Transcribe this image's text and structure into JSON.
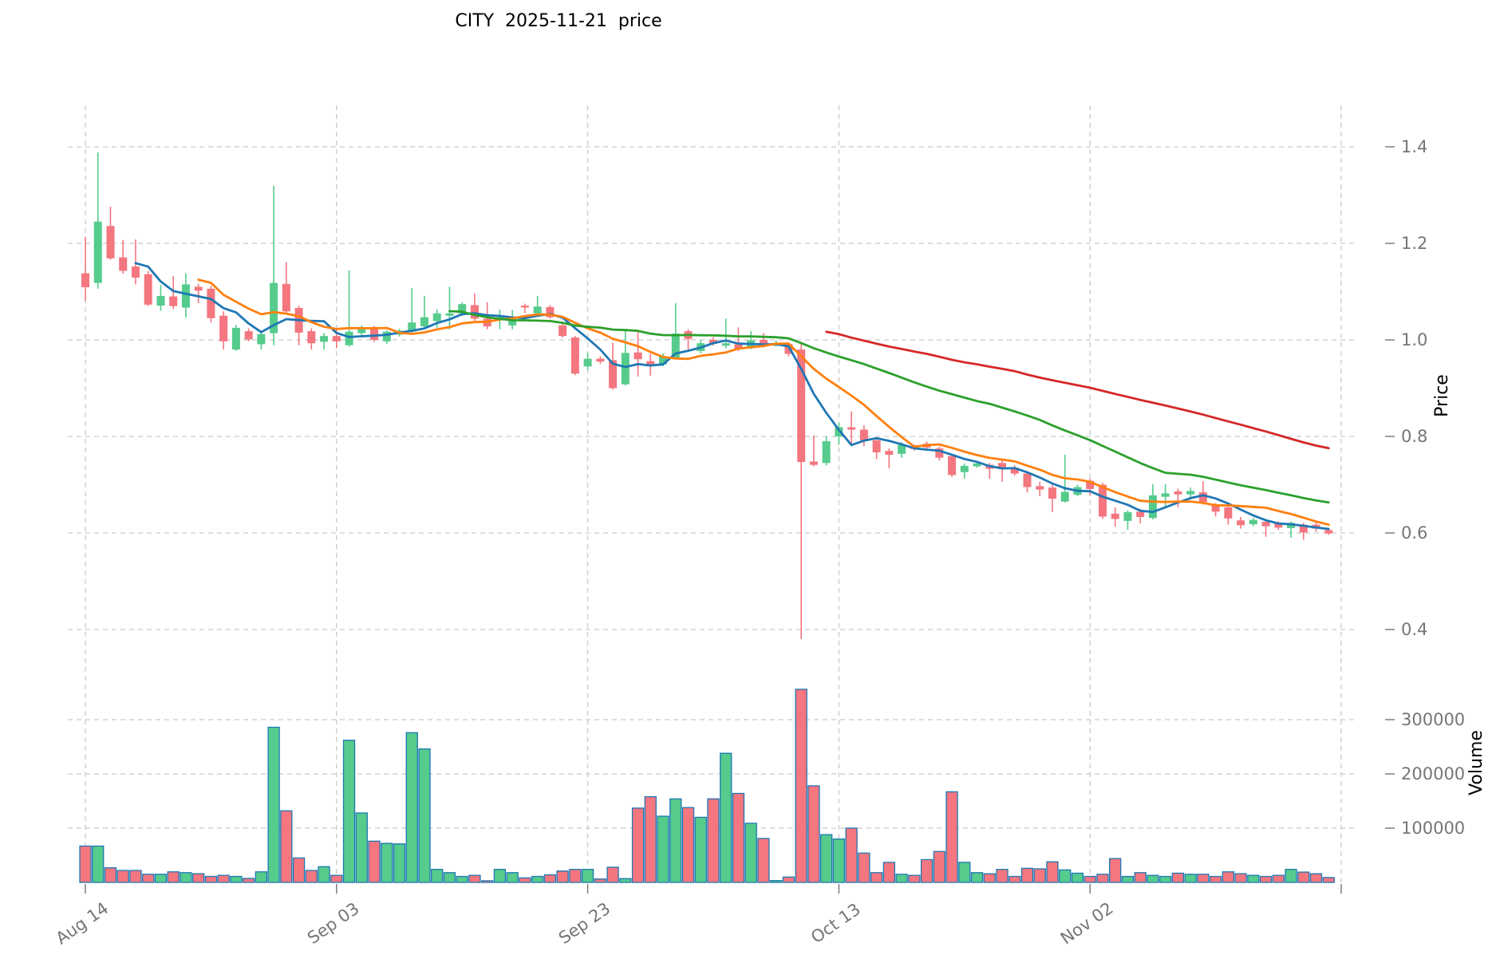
{
  "chart_data": {
    "type": "candlestick",
    "title": "CITY  2025-11-21  price",
    "ylabel": "Price",
    "ylabel_volume": "Volume",
    "legend": "none",
    "grid": "dashed",
    "x_ticks": {
      "labels": [
        "Aug 14",
        "Sep 03",
        "Sep 23",
        "Oct 13",
        "Nov 02"
      ],
      "candle_indices": [
        0,
        20,
        40,
        60,
        80
      ],
      "extra_unlabeled_gridline_index": 100,
      "rotation_deg": -35
    },
    "price_axis": {
      "ticks": [
        1.4,
        1.2,
        1.0,
        0.8,
        0.6,
        0.4
      ],
      "side": "right"
    },
    "volume_axis": {
      "ticks": [
        100000,
        200000,
        300000
      ],
      "side": "right"
    },
    "num_candles": 100,
    "open": [
      1.138,
      1.118,
      1.236,
      1.171,
      1.152,
      1.136,
      1.071,
      1.09,
      1.067,
      1.11,
      1.106,
      1.05,
      0.98,
      1.018,
      0.991,
      1.014,
      1.116,
      1.066,
      1.018,
      0.996,
      1.008,
      0.989,
      1.014,
      1.025,
      0.997,
      1.011,
      1.017,
      1.028,
      1.039,
      1.05,
      1.055,
      1.072,
      1.044,
      1.041,
      1.03,
      1.071,
      1.055,
      1.068,
      1.03,
      1.005,
      0.945,
      0.961,
      0.958,
      0.908,
      0.974,
      0.956,
      0.949,
      0.963,
      1.018,
      0.977,
      1.0,
      0.988,
      0.991,
      0.985,
      1.0,
      0.988,
      0.991,
      0.98,
      0.748,
      0.745,
      0.8,
      0.819,
      0.814,
      0.792,
      0.77,
      0.764,
      0.779,
      0.785,
      0.775,
      0.759,
      0.726,
      0.738,
      0.741,
      0.745,
      0.735,
      0.723,
      0.697,
      0.694,
      0.665,
      0.679,
      0.708,
      0.7,
      0.64,
      0.625,
      0.644,
      0.631,
      0.675,
      0.686,
      0.68,
      0.684,
      0.657,
      0.653,
      0.626,
      0.618,
      0.623,
      0.62,
      0.61,
      0.617,
      0.617,
      0.606
    ],
    "high": [
      1.213,
      1.388,
      1.276,
      1.207,
      1.208,
      1.143,
      1.114,
      1.132,
      1.138,
      1.116,
      1.112,
      1.059,
      1.031,
      1.024,
      1.017,
      1.319,
      1.161,
      1.071,
      1.024,
      1.014,
      1.025,
      1.144,
      1.03,
      1.029,
      1.02,
      1.023,
      1.107,
      1.091,
      1.063,
      1.11,
      1.078,
      1.096,
      1.078,
      1.063,
      1.062,
      1.075,
      1.091,
      1.072,
      1.033,
      1.008,
      0.974,
      0.966,
      0.994,
      1.022,
      1.018,
      0.971,
      0.972,
      1.076,
      1.022,
      1.0,
      1.006,
      1.044,
      1.026,
      1.018,
      1.014,
      0.999,
      0.994,
      0.994,
      0.802,
      0.8,
      0.828,
      0.852,
      0.823,
      0.797,
      0.775,
      0.788,
      0.783,
      0.789,
      0.779,
      0.762,
      0.744,
      0.748,
      0.745,
      0.75,
      0.74,
      0.727,
      0.706,
      0.7,
      0.762,
      0.7,
      0.712,
      0.704,
      0.653,
      0.647,
      0.65,
      0.701,
      0.701,
      0.692,
      0.694,
      0.707,
      0.662,
      0.661,
      0.633,
      0.631,
      0.628,
      0.624,
      0.624,
      0.621,
      0.621,
      0.61
    ],
    "low": [
      1.081,
      1.106,
      1.166,
      1.137,
      1.115,
      1.07,
      1.06,
      1.064,
      1.046,
      1.076,
      1.036,
      0.98,
      0.977,
      0.997,
      0.98,
      0.989,
      1.053,
      0.989,
      0.98,
      0.98,
      0.983,
      0.986,
      1.008,
      0.996,
      0.992,
      1.007,
      1.014,
      1.025,
      1.025,
      1.022,
      1.049,
      1.039,
      1.022,
      1.022,
      1.022,
      1.056,
      1.052,
      1.044,
      1.005,
      0.927,
      0.938,
      0.95,
      0.897,
      0.905,
      0.924,
      0.926,
      0.945,
      0.96,
      0.98,
      0.972,
      0.988,
      0.983,
      0.977,
      0.981,
      0.984,
      0.986,
      0.966,
      0.38,
      0.738,
      0.74,
      0.783,
      0.783,
      0.78,
      0.753,
      0.734,
      0.756,
      0.77,
      0.774,
      0.75,
      0.716,
      0.713,
      0.735,
      0.712,
      0.706,
      0.719,
      0.684,
      0.676,
      0.643,
      0.663,
      0.676,
      0.678,
      0.629,
      0.613,
      0.607,
      0.62,
      0.628,
      0.651,
      0.653,
      0.672,
      0.659,
      0.634,
      0.617,
      0.609,
      0.614,
      0.592,
      0.606,
      0.59,
      0.586,
      0.603,
      0.596
    ],
    "close": [
      1.109,
      1.245,
      1.169,
      1.143,
      1.129,
      1.073,
      1.091,
      1.07,
      1.115,
      1.102,
      1.045,
      0.997,
      1.025,
      1.001,
      1.012,
      1.118,
      1.059,
      1.015,
      0.993,
      1.008,
      0.997,
      1.017,
      1.022,
      1.0,
      1.017,
      1.019,
      1.036,
      1.047,
      1.055,
      1.055,
      1.074,
      1.044,
      1.028,
      1.047,
      1.039,
      1.067,
      1.069,
      1.047,
      1.008,
      0.93,
      0.961,
      0.955,
      0.9,
      0.973,
      0.96,
      0.947,
      0.966,
      1.013,
      1.002,
      0.993,
      0.992,
      0.993,
      0.981,
      0.999,
      0.988,
      0.994,
      0.971,
      0.747,
      0.741,
      0.79,
      0.819,
      0.814,
      0.792,
      0.767,
      0.762,
      0.783,
      0.774,
      0.777,
      0.756,
      0.72,
      0.739,
      0.744,
      0.733,
      0.733,
      0.723,
      0.695,
      0.69,
      0.671,
      0.685,
      0.695,
      0.691,
      0.634,
      0.629,
      0.643,
      0.633,
      0.678,
      0.682,
      0.68,
      0.687,
      0.664,
      0.644,
      0.63,
      0.616,
      0.627,
      0.614,
      0.611,
      0.621,
      0.601,
      0.609,
      0.599
    ],
    "volume": [
      67000,
      67000,
      27000,
      22000,
      22000,
      15000,
      15000,
      19500,
      18000,
      16000,
      11000,
      13000,
      11000,
      7300,
      19500,
      286000,
      132000,
      45000,
      22000,
      29000,
      13000,
      262000,
      128000,
      76000,
      72000,
      71000,
      276000,
      246000,
      24000,
      18000,
      11000,
      13000,
      3000,
      24000,
      18000,
      8300,
      11000,
      14000,
      21000,
      24000,
      24000,
      6300,
      28000,
      7000,
      137000,
      158000,
      122000,
      154000,
      138000,
      120000,
      154000,
      238000,
      164000,
      109000,
      81000,
      3400,
      9800,
      356000,
      178000,
      88000,
      80000,
      100000,
      54000,
      18000,
      37000,
      15000,
      13000,
      42000,
      57000,
      167000,
      37000,
      18000,
      16000,
      24000,
      11000,
      26000,
      25000,
      38000,
      23000,
      17000,
      11000,
      15000,
      44000,
      11000,
      18000,
      13000,
      11000,
      17000,
      15000,
      15000,
      11000,
      19500,
      16000,
      13000,
      11000,
      13000,
      24000,
      19000,
      16000,
      9000
    ],
    "moving_averages": [
      {
        "name": "MA5",
        "period": 5,
        "color": "#1f77b4"
      },
      {
        "name": "MA10",
        "period": 10,
        "color": "#ff7f0e"
      },
      {
        "name": "MA30",
        "period": 30,
        "color": "#2ca02c"
      },
      {
        "name": "MA60",
        "period": 60,
        "color": "#d62728"
      }
    ],
    "colors": {
      "up": "#55cb8c",
      "down": "#f4767f",
      "volume_bar_edge": "#1f77b4",
      "gridline": "#c9c9c9",
      "tick_text": "#757575",
      "axis_title_text": "#000000",
      "background": "#ffffff"
    }
  }
}
